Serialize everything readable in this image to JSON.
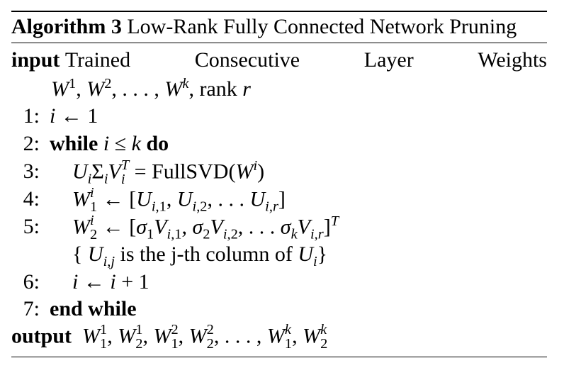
{
  "caption": {
    "label": "Algorithm 3",
    "title": "Low-Rank Fully Connected Network Pruning"
  },
  "input": {
    "keyword": "input",
    "words": [
      "Trained",
      "Consecutive",
      "Layer",
      "Weights"
    ],
    "rank_text": ", rank "
  },
  "lines": {
    "l1": "1:",
    "l2": "2:",
    "l3": "3:",
    "l4": "4:",
    "l5": "5:",
    "l6": "6:",
    "l7": "7:"
  },
  "keywords": {
    "while": "while",
    "do": "do",
    "end_while": "end while",
    "output": "output"
  },
  "text": {
    "fullsvd": "FullSVD",
    "comment": " is the j-th column of "
  }
}
